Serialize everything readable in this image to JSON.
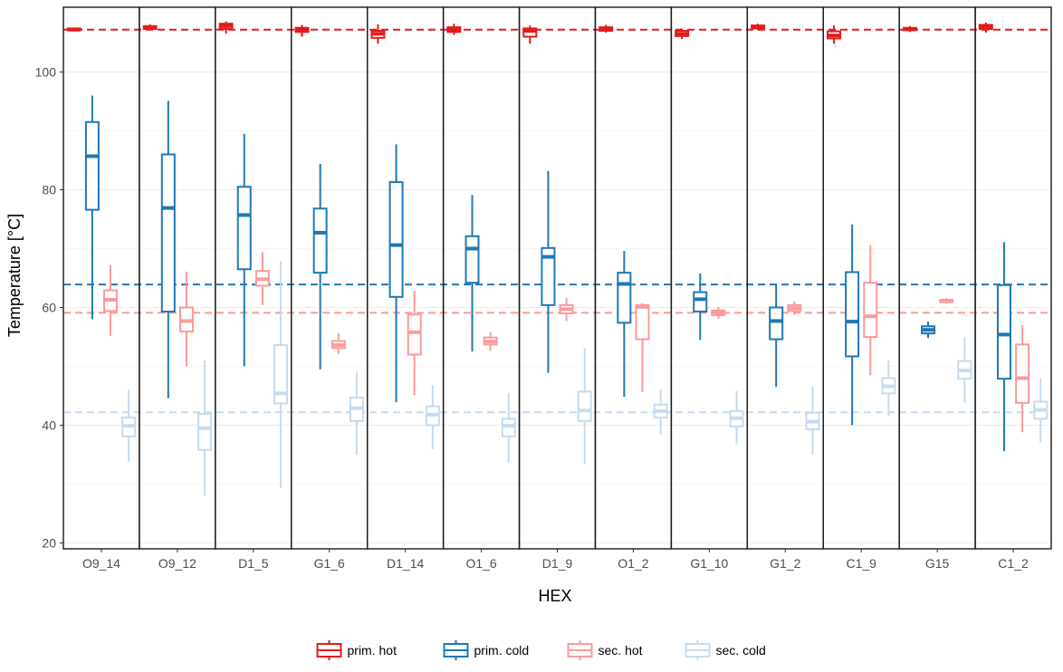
{
  "chart_data": {
    "type": "boxplot",
    "xlabel": "HEX",
    "ylabel": "Temperature [°C]",
    "ylim": [
      19,
      111
    ],
    "yticks": [
      20,
      40,
      60,
      80,
      100
    ],
    "grid": true,
    "legend_position": "bottom",
    "categories": [
      "O9_14",
      "O9_12",
      "D1_5",
      "G1_6",
      "D1_14",
      "O1_6",
      "D1_9",
      "O1_2",
      "G1_10",
      "G1_2",
      "C1_9",
      "G15",
      "C1_2"
    ],
    "reference_lines": [
      {
        "series": "prim. hot",
        "y": 107.2
      },
      {
        "series": "prim. cold",
        "y": 63.9
      },
      {
        "series": "sec. hot",
        "y": 59.1
      },
      {
        "series": "sec. cold",
        "y": 42.2
      }
    ],
    "series": [
      {
        "name": "prim. hot",
        "color": "#e41a1c",
        "boxes": [
          {
            "min": 107.0,
            "q1": 107.1,
            "median": 107.2,
            "q3": 107.4,
            "max": 107.5
          },
          {
            "min": 107.1,
            "q1": 107.3,
            "median": 107.6,
            "q3": 107.8,
            "max": 108.1
          },
          {
            "min": 106.5,
            "q1": 107.3,
            "median": 107.8,
            "q3": 108.2,
            "max": 108.6
          },
          {
            "min": 106.0,
            "q1": 106.8,
            "median": 107.2,
            "q3": 107.5,
            "max": 108.0
          },
          {
            "min": 104.8,
            "q1": 105.8,
            "median": 106.5,
            "q3": 107.0,
            "max": 108.1
          },
          {
            "min": 106.3,
            "q1": 106.8,
            "median": 107.2,
            "q3": 107.6,
            "max": 108.2
          },
          {
            "min": 104.8,
            "q1": 106.0,
            "median": 107.0,
            "q3": 107.4,
            "max": 107.9
          },
          {
            "min": 106.7,
            "q1": 107.0,
            "median": 107.3,
            "q3": 107.6,
            "max": 108.0
          },
          {
            "min": 105.6,
            "q1": 106.1,
            "median": 106.5,
            "q3": 107.0,
            "max": 107.4
          },
          {
            "min": 107.1,
            "q1": 107.4,
            "median": 107.7,
            "q3": 107.9,
            "max": 108.2
          },
          {
            "min": 104.8,
            "q1": 105.7,
            "median": 106.2,
            "q3": 106.9,
            "max": 107.9
          },
          {
            "min": 106.8,
            "q1": 107.1,
            "median": 107.3,
            "q3": 107.5,
            "max": 107.8
          },
          {
            "min": 106.7,
            "q1": 107.3,
            "median": 107.7,
            "q3": 108.0,
            "max": 108.4
          }
        ]
      },
      {
        "name": "prim. cold",
        "color": "#1f78b4",
        "boxes": [
          {
            "min": 58.0,
            "q1": 76.6,
            "median": 85.7,
            "q3": 91.5,
            "max": 96.0
          },
          {
            "min": 44.6,
            "q1": 59.3,
            "median": 76.9,
            "q3": 86.0,
            "max": 95.1
          },
          {
            "min": 50.0,
            "q1": 66.5,
            "median": 75.7,
            "q3": 80.5,
            "max": 89.5
          },
          {
            "min": 49.5,
            "q1": 65.9,
            "median": 72.7,
            "q3": 76.8,
            "max": 84.4
          },
          {
            "min": 43.9,
            "q1": 61.8,
            "median": 70.6,
            "q3": 81.3,
            "max": 87.7
          },
          {
            "min": 52.5,
            "q1": 64.2,
            "median": 70.0,
            "q3": 72.1,
            "max": 79.1
          },
          {
            "min": 48.9,
            "q1": 60.4,
            "median": 68.6,
            "q3": 70.1,
            "max": 83.2
          },
          {
            "min": 44.8,
            "q1": 57.4,
            "median": 64.0,
            "q3": 65.9,
            "max": 69.6
          },
          {
            "min": 54.5,
            "q1": 59.3,
            "median": 61.4,
            "q3": 62.6,
            "max": 65.8
          },
          {
            "min": 46.5,
            "q1": 54.6,
            "median": 57.7,
            "q3": 60.0,
            "max": 63.9
          },
          {
            "min": 40.0,
            "q1": 51.7,
            "median": 57.6,
            "q3": 66.0,
            "max": 74.1
          },
          {
            "min": 54.8,
            "q1": 55.6,
            "median": 56.2,
            "q3": 56.8,
            "max": 57.6
          },
          {
            "min": 35.6,
            "q1": 47.9,
            "median": 55.4,
            "q3": 63.8,
            "max": 71.1
          }
        ]
      },
      {
        "name": "sec. hot",
        "color": "#fb9a99",
        "boxes": [
          {
            "min": 55.2,
            "q1": 59.4,
            "median": 61.3,
            "q3": 62.9,
            "max": 67.2
          },
          {
            "min": 50.0,
            "q1": 55.9,
            "median": 57.7,
            "q3": 60.0,
            "max": 66.1
          },
          {
            "min": 60.4,
            "q1": 63.7,
            "median": 64.8,
            "q3": 66.2,
            "max": 69.4
          },
          {
            "min": 52.1,
            "q1": 53.1,
            "median": 53.6,
            "q3": 54.3,
            "max": 55.6
          },
          {
            "min": 45.1,
            "q1": 52.0,
            "median": 55.8,
            "q3": 58.8,
            "max": 62.8
          },
          {
            "min": 52.6,
            "q1": 53.7,
            "median": 54.2,
            "q3": 54.9,
            "max": 55.8
          },
          {
            "min": 57.7,
            "q1": 59.0,
            "median": 59.7,
            "q3": 60.4,
            "max": 61.6
          },
          {
            "min": 45.6,
            "q1": 54.6,
            "median": 60.1,
            "q3": 60.4,
            "max": 60.7
          },
          {
            "min": 58.1,
            "q1": 58.7,
            "median": 59.1,
            "q3": 59.5,
            "max": 60.1
          },
          {
            "min": 58.8,
            "q1": 59.4,
            "median": 59.9,
            "q3": 60.4,
            "max": 61.0
          },
          {
            "min": 48.5,
            "q1": 55.0,
            "median": 58.5,
            "q3": 64.2,
            "max": 70.6
          },
          {
            "min": 60.7,
            "q1": 60.9,
            "median": 61.1,
            "q3": 61.3,
            "max": 61.6
          },
          {
            "min": 38.8,
            "q1": 43.8,
            "median": 48.0,
            "q3": 53.7,
            "max": 57.0
          }
        ]
      },
      {
        "name": "sec. cold",
        "color": "#c6dbef",
        "boxes": [
          {
            "min": 33.8,
            "q1": 38.1,
            "median": 39.9,
            "q3": 41.3,
            "max": 46.0
          },
          {
            "min": 28.0,
            "q1": 35.8,
            "median": 39.5,
            "q3": 41.9,
            "max": 51.0
          },
          {
            "min": 29.3,
            "q1": 43.7,
            "median": 45.4,
            "q3": 53.6,
            "max": 67.9
          },
          {
            "min": 35.0,
            "q1": 40.7,
            "median": 42.9,
            "q3": 44.7,
            "max": 49.0
          },
          {
            "min": 35.9,
            "q1": 40.0,
            "median": 41.8,
            "q3": 43.2,
            "max": 46.8
          },
          {
            "min": 33.6,
            "q1": 38.1,
            "median": 39.9,
            "q3": 41.1,
            "max": 45.5
          },
          {
            "min": 33.4,
            "q1": 40.7,
            "median": 42.5,
            "q3": 45.7,
            "max": 53.1
          },
          {
            "min": 38.3,
            "q1": 41.3,
            "median": 42.4,
            "q3": 43.5,
            "max": 46.1
          },
          {
            "min": 36.7,
            "q1": 39.8,
            "median": 41.2,
            "q3": 42.4,
            "max": 45.8
          },
          {
            "min": 35.0,
            "q1": 39.3,
            "median": 40.6,
            "q3": 42.1,
            "max": 46.6
          },
          {
            "min": 41.5,
            "q1": 45.4,
            "median": 46.6,
            "q3": 48.0,
            "max": 51.0
          },
          {
            "min": 43.8,
            "q1": 47.9,
            "median": 49.3,
            "q3": 50.9,
            "max": 55.0
          },
          {
            "min": 37.1,
            "q1": 41.1,
            "median": 42.6,
            "q3": 44.0,
            "max": 48.0
          }
        ]
      }
    ]
  }
}
